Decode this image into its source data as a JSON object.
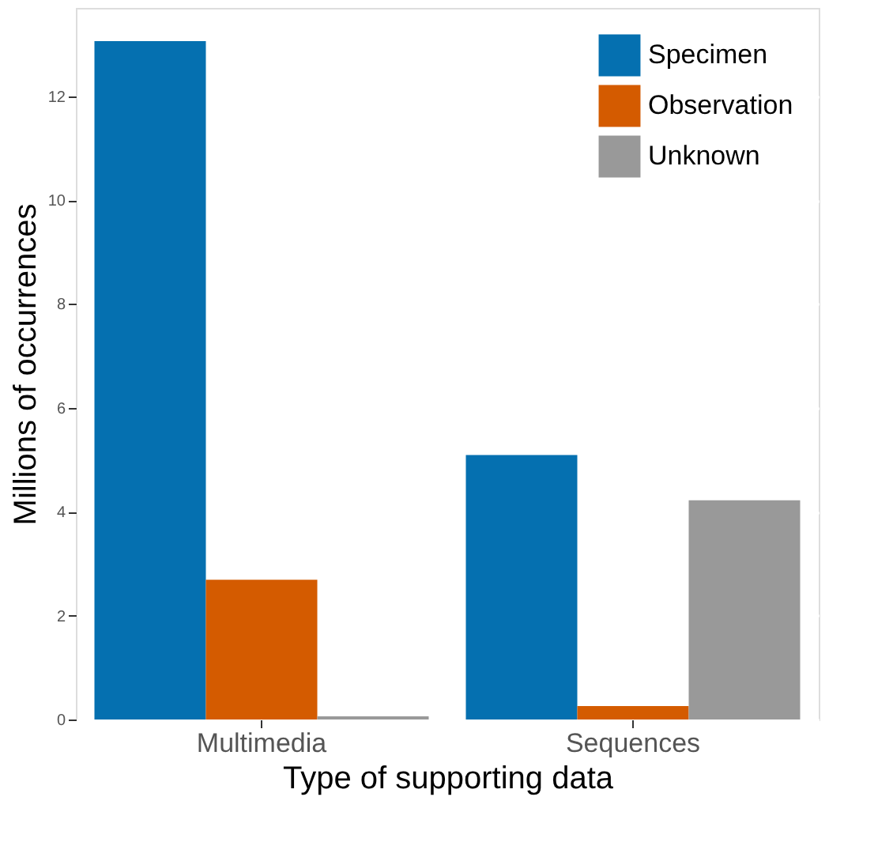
{
  "chart_data": {
    "type": "bar",
    "xlabel": "Type of supporting data",
    "ylabel": "Millions of occurrences",
    "categories": [
      "Multimedia",
      "Sequences"
    ],
    "series": [
      {
        "name": "Specimen",
        "color": "#0570b0",
        "values": [
          13.06,
          5.09
        ]
      },
      {
        "name": "Observation",
        "color": "#d45b00",
        "values": [
          2.69,
          0.26
        ]
      },
      {
        "name": "Unknown",
        "color": "#999999",
        "values": [
          0.06,
          4.22
        ]
      }
    ],
    "ylim": [
      0,
      13.7
    ],
    "yticks": [
      0,
      2,
      4,
      6,
      8,
      10,
      12
    ],
    "grid": "y",
    "legend": "top right"
  }
}
